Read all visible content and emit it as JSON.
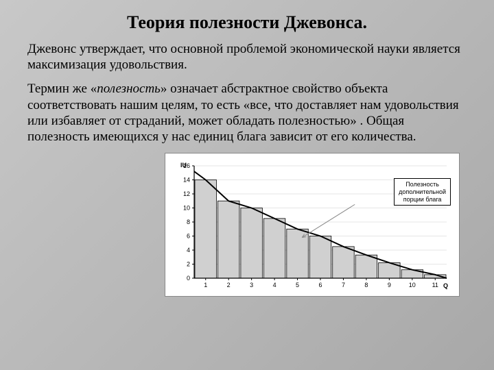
{
  "title": "Теория полезности Джевонса.",
  "para1": "Джевонс утверждает, что основной проблемой экономической науки является максимизация удовольствия.",
  "para2_a": "Термин же «",
  "para2_b": "полезность",
  "para2_c": "» означает абстрактное свойство объекта соответствовать нашим целям, то есть «все, что доставляет нам удовольствия или избавляет от страданий, может обладать полезностью» . Общая полезность имеющихся у нас единиц блага зависит от его количества.",
  "chart": {
    "type": "bar+line",
    "y_label": "IU",
    "x_label": "Q",
    "ylim": [
      0,
      16
    ],
    "ytick_step": 2,
    "y_ticks": [
      0,
      2,
      4,
      6,
      8,
      10,
      12,
      14,
      16
    ],
    "x_ticks": [
      1,
      2,
      3,
      4,
      5,
      6,
      7,
      8,
      9,
      10,
      11
    ],
    "bar_values": [
      14,
      11,
      10,
      8.5,
      7,
      6,
      4.5,
      3.3,
      2.2,
      1.2,
      0.5
    ],
    "bar_fill": "#d0d0d0",
    "bar_stroke": "#000000",
    "curve_color": "#000000",
    "curve_width": 2,
    "pointer_line_color": "#888888",
    "background": "#ffffff",
    "axis_color": "#000000",
    "grid_color": "#cccccc",
    "label_fontsize": 9,
    "legend_text_1": "Полезность",
    "legend_text_2": "дополнительной",
    "legend_text_3": "порции блага",
    "pointer_from": [
      7.5,
      10.5
    ],
    "pointer_to": [
      5.2,
      5.8
    ]
  }
}
